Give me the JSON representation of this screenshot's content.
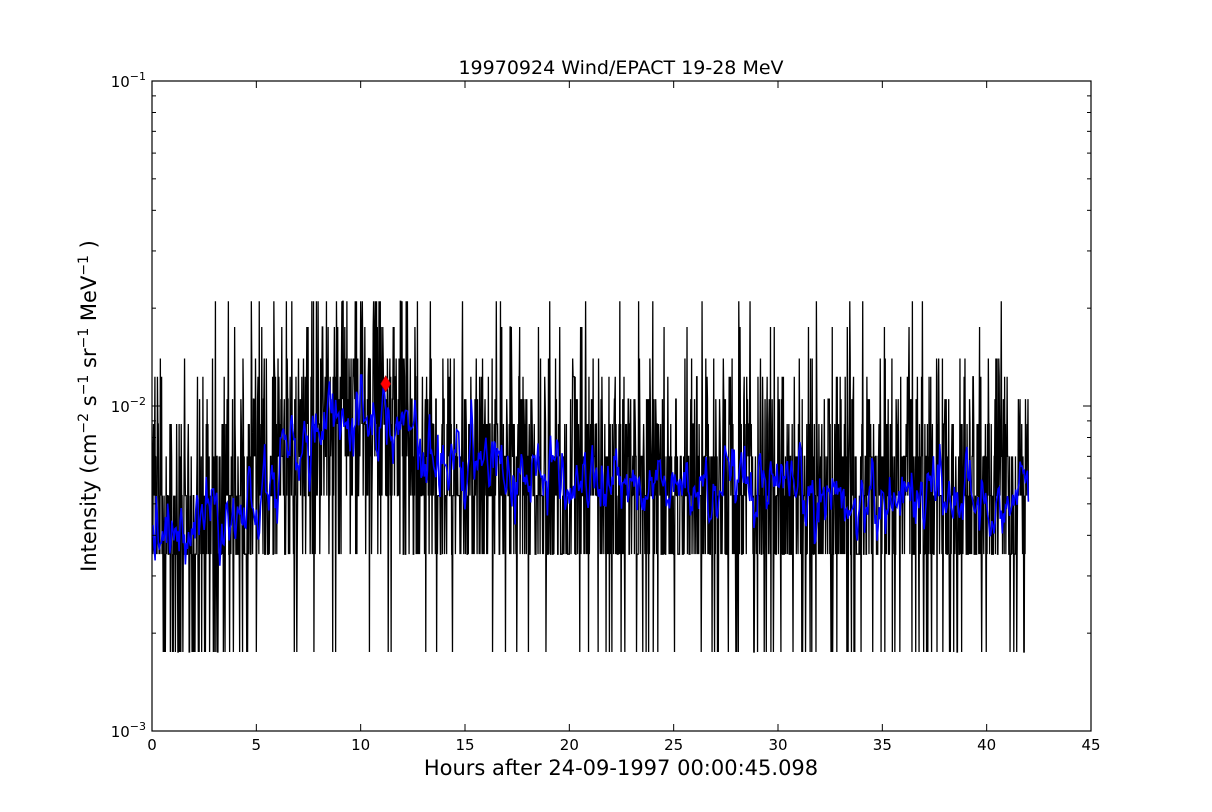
{
  "chart_data": {
    "type": "line",
    "title": "19970924 Wind/EPACT 19-28 MeV",
    "xlabel": "Hours after 24-09-1997 00:00:45.098",
    "ylabel": {
      "prefix": "Intensity (cm",
      "exp1": "−2",
      "mid1": " s",
      "exp2": "−1",
      "mid2": " sr",
      "exp3": "−1",
      "mid3": " MeV",
      "exp4": "−1",
      "suffix": " )"
    },
    "xlim": [
      0,
      45
    ],
    "ylim": [
      0.001,
      0.1
    ],
    "yscale": "log",
    "grid": false,
    "x_ticks": [
      0,
      5,
      10,
      15,
      20,
      25,
      30,
      35,
      40,
      45
    ],
    "y_ticks": [
      {
        "value": 0.001,
        "base": "10",
        "exp": "−3"
      },
      {
        "value": 0.01,
        "base": "10",
        "exp": "−2"
      },
      {
        "value": 0.1,
        "base": "10",
        "exp": "−1"
      }
    ],
    "series": [
      {
        "color": "#000000",
        "x_start": 0.0,
        "x_end": 42.0,
        "x_step": 0.02,
        "levels": [
          0.00175,
          0.0035,
          0.0053,
          0.007,
          0.0088,
          0.0105,
          0.0123,
          0.014,
          0.0175,
          0.021
        ],
        "baseline": [
          [
            0,
            0.0044
          ],
          [
            2,
            0.0047
          ],
          [
            4,
            0.0049
          ],
          [
            5,
            0.0057
          ],
          [
            6,
            0.0066
          ],
          [
            7,
            0.0072
          ],
          [
            8,
            0.0078
          ],
          [
            9,
            0.0084
          ],
          [
            10,
            0.0096
          ],
          [
            11,
            0.0092
          ],
          [
            12,
            0.0083
          ],
          [
            13,
            0.0071
          ],
          [
            14,
            0.0066
          ],
          [
            15,
            0.0064
          ],
          [
            16,
            0.0064
          ],
          [
            17,
            0.0062
          ],
          [
            18,
            0.0061
          ],
          [
            20,
            0.0058
          ],
          [
            22,
            0.0057
          ],
          [
            25,
            0.0056
          ],
          [
            28,
            0.0054
          ],
          [
            31,
            0.0052
          ],
          [
            34,
            0.0052
          ],
          [
            37,
            0.0054
          ],
          [
            40,
            0.0052
          ],
          [
            42,
            0.0052
          ]
        ]
      },
      {
        "color": "#0000ff",
        "x_start": 0.0,
        "x_end": 42.0,
        "x_step": 0.05,
        "baseline": [
          [
            0,
            0.004
          ],
          [
            1,
            0.0043
          ],
          [
            2,
            0.0045
          ],
          [
            3,
            0.0047
          ],
          [
            4,
            0.005
          ],
          [
            5,
            0.0055
          ],
          [
            6,
            0.0065
          ],
          [
            7,
            0.0074
          ],
          [
            8,
            0.0082
          ],
          [
            9,
            0.0088
          ],
          [
            10,
            0.01
          ],
          [
            11,
            0.0096
          ],
          [
            12,
            0.0087
          ],
          [
            13,
            0.0072
          ],
          [
            14,
            0.0066
          ],
          [
            15,
            0.0065
          ],
          [
            16,
            0.0066
          ],
          [
            17,
            0.0062
          ],
          [
            18,
            0.0064
          ],
          [
            19,
            0.006
          ],
          [
            20,
            0.0058
          ],
          [
            22,
            0.0058
          ],
          [
            24,
            0.0056
          ],
          [
            26,
            0.0055
          ],
          [
            28,
            0.0054
          ],
          [
            30,
            0.0052
          ],
          [
            32,
            0.0052
          ],
          [
            34,
            0.0051
          ],
          [
            36,
            0.0053
          ],
          [
            38,
            0.0056
          ],
          [
            40,
            0.0049
          ],
          [
            42,
            0.0052
          ]
        ]
      }
    ],
    "marker": {
      "x": 11.2,
      "y": 0.0117,
      "color": "#ff0000",
      "shape": "diamond"
    }
  }
}
